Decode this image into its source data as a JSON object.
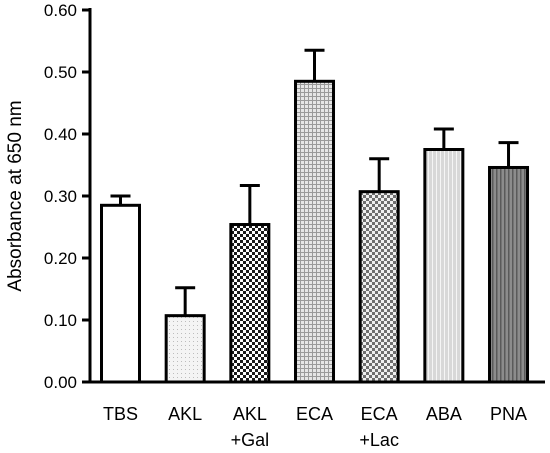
{
  "chart_data": {
    "type": "bar",
    "title": "",
    "xlabel": "",
    "ylabel": "Absorbance at 650 nm",
    "ylim": [
      0,
      0.6
    ],
    "yticks": [
      "0.00",
      "0.10",
      "0.20",
      "0.30",
      "0.40",
      "0.50",
      "0.60"
    ],
    "grid": false,
    "legend": "none",
    "categories": [
      {
        "line1": "TBS",
        "line2": ""
      },
      {
        "line1": "AKL",
        "line2": ""
      },
      {
        "line1": "AKL",
        "line2": "+Gal"
      },
      {
        "line1": "ECA",
        "line2": ""
      },
      {
        "line1": "ECA",
        "line2": "+Lac"
      },
      {
        "line1": "ABA",
        "line2": ""
      },
      {
        "line1": "PNA",
        "line2": ""
      }
    ],
    "values": [
      0.285,
      0.107,
      0.254,
      0.485,
      0.307,
      0.375,
      0.346
    ],
    "errors": [
      0.015,
      0.045,
      0.063,
      0.05,
      0.053,
      0.033,
      0.04
    ],
    "fills": [
      "blank",
      "dots",
      "checker",
      "grid",
      "checker-light",
      "vlines-light",
      "vlines-dark"
    ]
  }
}
